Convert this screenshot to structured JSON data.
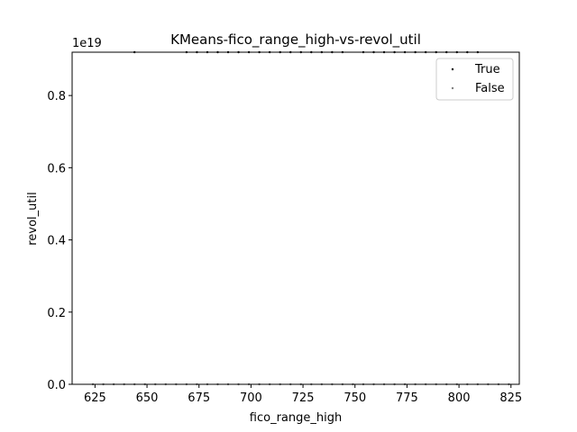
{
  "chart_data": {
    "type": "scatter",
    "title": "KMeans-fico_range_high-vs-revol_util",
    "xlabel": "fico_range_high",
    "ylabel": "revol_util",
    "y_offset_label": "1e19",
    "xlim": [
      614,
      829
    ],
    "ylim": [
      0,
      0.92
    ],
    "x_ticks": [
      625,
      650,
      675,
      700,
      725,
      750,
      775,
      800,
      825
    ],
    "y_ticks": [
      0.0,
      0.2,
      0.4,
      0.6,
      0.8
    ],
    "x_tick_labels": [
      "625",
      "650",
      "675",
      "700",
      "725",
      "750",
      "775",
      "800",
      "825"
    ],
    "y_tick_labels": [
      "0.0",
      "0.2",
      "0.4",
      "0.6",
      "0.8"
    ],
    "grid": false,
    "legend_position": "top-right",
    "series": [
      {
        "name": "True",
        "color": "#000000",
        "x": [
          644,
          669,
          674,
          679,
          684,
          689,
          694,
          699,
          704,
          709,
          714,
          719,
          724,
          729,
          734,
          739,
          744,
          754,
          759,
          764,
          769,
          774,
          779,
          784,
          789,
          794,
          799,
          804,
          809
        ],
        "y": [
          0.92,
          0.92,
          0.92,
          0.92,
          0.92,
          0.92,
          0.92,
          0.92,
          0.92,
          0.92,
          0.92,
          0.92,
          0.92,
          0.92,
          0.92,
          0.92,
          0.92,
          0.92,
          0.92,
          0.92,
          0.92,
          0.92,
          0.92,
          0.92,
          0.92,
          0.92,
          0.92,
          0.92,
          0.92
        ]
      },
      {
        "name": "False",
        "color": "#808080",
        "x": [
          624,
          629,
          634,
          639,
          644,
          649,
          654,
          659,
          664,
          669,
          674,
          679,
          684,
          689,
          694,
          699,
          704,
          709,
          714,
          719,
          724,
          729,
          734,
          739,
          744,
          749,
          754,
          759,
          764,
          769,
          774,
          779,
          784,
          789,
          794,
          799,
          804,
          809,
          814,
          819,
          824
        ],
        "y": [
          0,
          0,
          0,
          0,
          0,
          0,
          0,
          0,
          0,
          0,
          0,
          0,
          0,
          0,
          0,
          0,
          0,
          0,
          0,
          0,
          0,
          0,
          0,
          0,
          0,
          0,
          0,
          0,
          0,
          0,
          0,
          0,
          0,
          0,
          0,
          0,
          0,
          0,
          0,
          0,
          0
        ]
      }
    ]
  }
}
